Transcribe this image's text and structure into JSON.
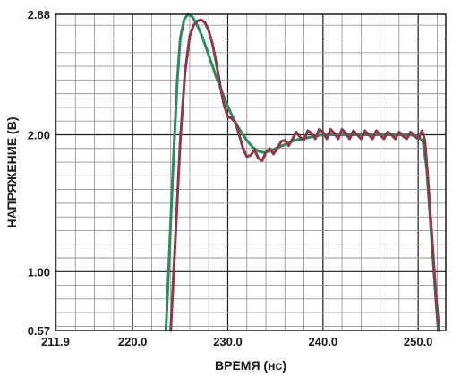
{
  "chart_data": {
    "type": "line",
    "xlabel": "ВРЕМЯ (нс)",
    "ylabel": "НАПРЯЖЕНИЕ (В)",
    "xlim": [
      211.9,
      252.9
    ],
    "ylim": [
      0.57,
      2.88
    ],
    "x_ticks": [
      "211.9",
      "220.0",
      "230.0",
      "240.0",
      "250.0"
    ],
    "x_tick_values": [
      211.9,
      220.0,
      230.0,
      240.0,
      250.0
    ],
    "y_ticks": [
      "0.57",
      "1.00",
      "2.00",
      "2.88"
    ],
    "y_tick_values": [
      0.57,
      1.0,
      2.0,
      2.88
    ],
    "grid": true,
    "series": [
      {
        "color": "#2e8b5e",
        "x": [
          223.5,
          223.9,
          224.3,
          224.7,
          225.0,
          225.4,
          225.8,
          226.3,
          226.8,
          227.3,
          227.8,
          228.3,
          228.8,
          229.3,
          229.8,
          230.3,
          230.8,
          231.4,
          232.0,
          232.6,
          233.2,
          233.8,
          234.4,
          235.0,
          235.7,
          236.4,
          237.0,
          237.8,
          238.5,
          239.2,
          240.0,
          241.0,
          242.0,
          243.0,
          244.0,
          245.0,
          246.0,
          247.0,
          248.0,
          249.0,
          250.0,
          250.5,
          250.9,
          251.2,
          251.5,
          251.8,
          252.1
        ],
        "y": [
          0.57,
          1.2,
          1.85,
          2.4,
          2.7,
          2.84,
          2.88,
          2.86,
          2.8,
          2.72,
          2.62,
          2.52,
          2.42,
          2.33,
          2.24,
          2.16,
          2.09,
          2.02,
          1.96,
          1.91,
          1.88,
          1.87,
          1.88,
          1.9,
          1.92,
          1.94,
          1.96,
          1.97,
          1.98,
          1.99,
          2.0,
          2.0,
          2.0,
          2.0,
          2.0,
          2.0,
          2.0,
          2.0,
          2.0,
          2.0,
          1.99,
          1.95,
          1.75,
          1.45,
          1.15,
          0.85,
          0.57
        ]
      },
      {
        "color": "#8b3a4a",
        "x": [
          224.0,
          224.5,
          225.0,
          225.5,
          226.0,
          226.4,
          226.8,
          227.2,
          227.6,
          228.0,
          228.4,
          228.8,
          229.2,
          229.6,
          230.0,
          230.4,
          230.8,
          231.2,
          231.6,
          232.0,
          232.4,
          232.8,
          233.2,
          233.6,
          234.0,
          234.4,
          234.8,
          235.2,
          235.6,
          236.0,
          236.4,
          236.8,
          237.2,
          237.6,
          238.0,
          238.4,
          238.8,
          239.2,
          239.6,
          240.0,
          240.4,
          240.8,
          241.2,
          241.6,
          242.0,
          242.4,
          242.8,
          243.2,
          243.6,
          244.0,
          244.4,
          244.8,
          245.2,
          245.6,
          246.0,
          246.4,
          246.8,
          247.2,
          247.6,
          248.0,
          248.4,
          248.8,
          249.2,
          249.6,
          250.0,
          250.4,
          250.7,
          251.0,
          251.3,
          251.6,
          251.9,
          252.2
        ],
        "y": [
          0.57,
          1.25,
          1.95,
          2.45,
          2.72,
          2.8,
          2.83,
          2.84,
          2.82,
          2.76,
          2.66,
          2.52,
          2.36,
          2.22,
          2.13,
          2.12,
          2.09,
          2.0,
          1.9,
          1.84,
          1.85,
          1.89,
          1.83,
          1.81,
          1.87,
          1.9,
          1.86,
          1.9,
          1.95,
          1.96,
          1.92,
          1.97,
          2.02,
          1.98,
          1.96,
          2.03,
          2.01,
          1.97,
          2.04,
          2.02,
          1.97,
          2.04,
          2.01,
          1.97,
          2.04,
          2.01,
          1.97,
          2.03,
          2.0,
          1.97,
          2.03,
          2.0,
          1.97,
          2.03,
          2.0,
          1.97,
          2.02,
          2.0,
          1.97,
          2.02,
          1.99,
          1.97,
          2.02,
          1.99,
          1.97,
          2.03,
          1.96,
          1.7,
          1.4,
          1.1,
          0.8,
          0.57
        ]
      }
    ]
  }
}
